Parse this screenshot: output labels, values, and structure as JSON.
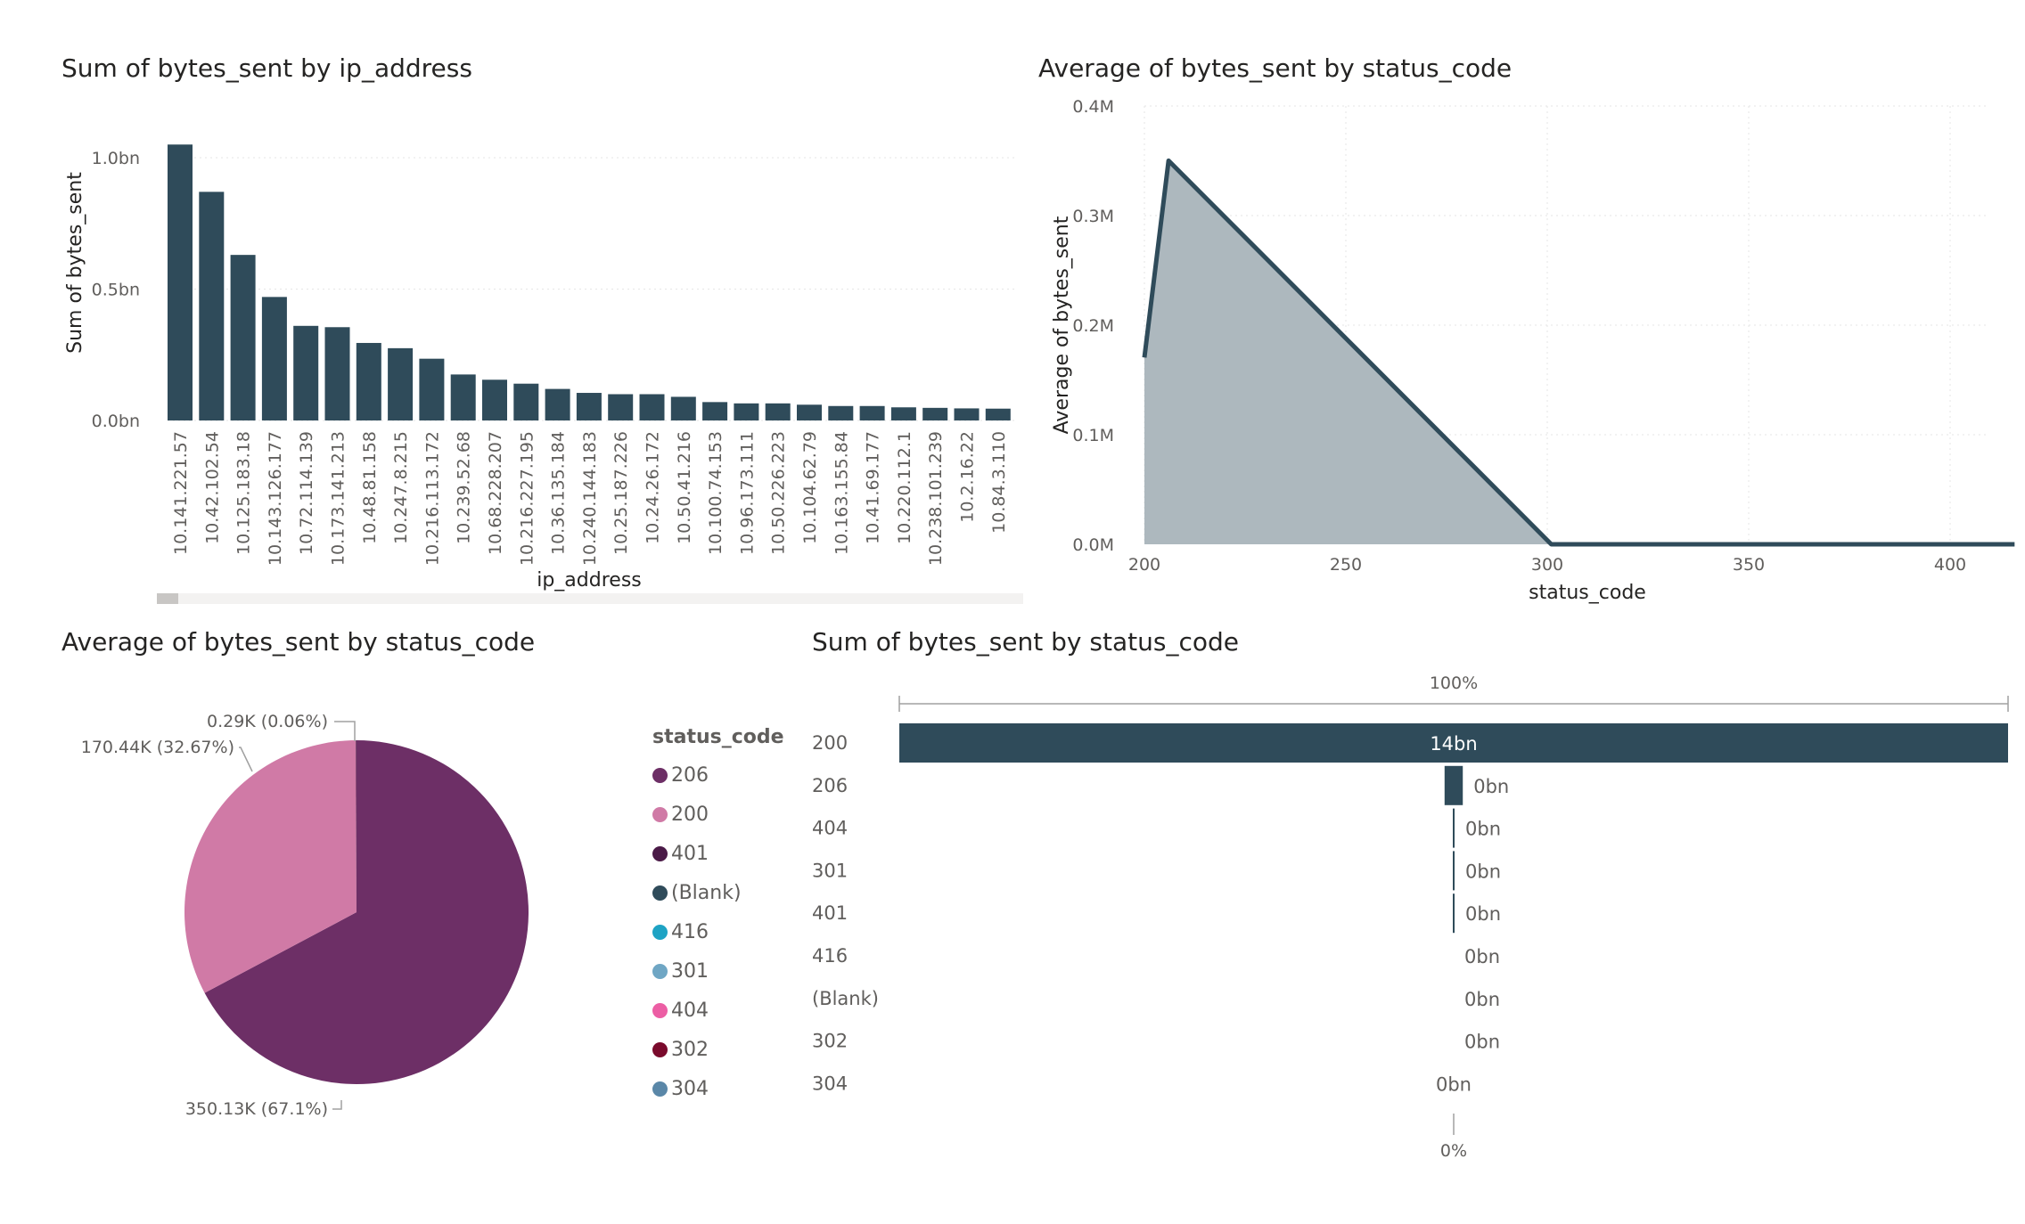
{
  "charts": {
    "bar_ip": {
      "title": "Sum of bytes_sent by ip_address"
    },
    "area_status": {
      "title": "Average of bytes_sent by status_code"
    },
    "pie_status": {
      "title": "Average of bytes_sent by status_code",
      "legend_title": "status_code",
      "legend_items": [
        {
          "label": "206",
          "color": "#6d2f66"
        },
        {
          "label": "200",
          "color": "#d07aa6"
        },
        {
          "label": "401",
          "color": "#4a1a47"
        },
        {
          "label": "(Blank)",
          "color": "#2f4b5a"
        },
        {
          "label": "416",
          "color": "#1ea3c4"
        },
        {
          "label": "301",
          "color": "#6fa6c4"
        },
        {
          "label": "404",
          "color": "#ec5ea4"
        },
        {
          "label": "302",
          "color": "#7a0a2c"
        },
        {
          "label": "304",
          "color": "#5a87a8"
        }
      ]
    },
    "funnel_status": {
      "title": "Sum of bytes_sent by status_code",
      "top_label": "100%",
      "bottom_label": "0%"
    }
  },
  "chart_data": [
    {
      "type": "bar",
      "title": "Sum of bytes_sent by ip_address",
      "xlabel": "ip_address",
      "ylabel": "Sum of bytes_sent",
      "ylim": [
        0,
        1.05
      ],
      "yticks": [
        "0.0bn",
        "0.5bn",
        "1.0bn"
      ],
      "ytick_values": [
        0,
        0.5,
        1.0
      ],
      "grid": true,
      "categories": [
        "10.141.221.57",
        "10.42.102.54",
        "10.125.183.18",
        "10.143.126.177",
        "10.72.114.139",
        "10.173.141.213",
        "10.48.81.158",
        "10.247.8.215",
        "10.216.113.172",
        "10.239.52.68",
        "10.68.228.207",
        "10.216.227.195",
        "10.36.135.184",
        "10.240.144.183",
        "10.25.187.226",
        "10.24.26.172",
        "10.50.41.216",
        "10.100.74.153",
        "10.96.173.111",
        "10.50.226.223",
        "10.104.62.79",
        "10.163.155.84",
        "10.41.69.177",
        "10.220.112.1",
        "10.238.101.239",
        "10.2.16.22",
        "10.84.3.110"
      ],
      "values": [
        1.05,
        0.87,
        0.63,
        0.47,
        0.36,
        0.355,
        0.295,
        0.275,
        0.235,
        0.175,
        0.155,
        0.14,
        0.12,
        0.105,
        0.1,
        0.1,
        0.09,
        0.07,
        0.065,
        0.065,
        0.06,
        0.055,
        0.055,
        0.05,
        0.048,
        0.046,
        0.045
      ],
      "unit": "bn"
    },
    {
      "type": "area",
      "title": "Average of bytes_sent by status_code",
      "xlabel": "status_code",
      "ylabel": "Average of bytes_sent",
      "xlim": [
        200,
        416
      ],
      "ylim": [
        0,
        0.4
      ],
      "xticks": [
        200,
        250,
        300,
        350,
        400
      ],
      "yticks": [
        "0.0M",
        "0.1M",
        "0.2M",
        "0.3M",
        "0.4M"
      ],
      "ytick_values": [
        0,
        0.1,
        0.2,
        0.3,
        0.4
      ],
      "grid": true,
      "points": [
        [
          200,
          0.17044
        ],
        [
          206,
          0.35013
        ],
        [
          301,
          0.0
        ],
        [
          302,
          0.0
        ],
        [
          304,
          0.0
        ],
        [
          401,
          0.0
        ],
        [
          404,
          0.0
        ],
        [
          416,
          0.0
        ]
      ],
      "unit": "M"
    },
    {
      "type": "pie",
      "title": "Average of bytes_sent by status_code",
      "slices": [
        {
          "label": "206",
          "value": 350.13,
          "display": "350.13K (67.1%)"
        },
        {
          "label": "200",
          "value": 170.44,
          "display": "170.44K (32.67%)"
        },
        {
          "label": "401",
          "value": 0.29,
          "display": "0.29K (0.06%)"
        }
      ],
      "legend_position": "right"
    },
    {
      "type": "bar",
      "title": "Sum of bytes_sent by status_code",
      "orientation": "funnel",
      "categories": [
        "200",
        "206",
        "404",
        "301",
        "401",
        "416",
        "(Blank)",
        "302",
        "304"
      ],
      "values": [
        14,
        0.23,
        0.002,
        0.001,
        0.001,
        0,
        0,
        0,
        0
      ],
      "value_labels": [
        "14bn",
        "0bn",
        "0bn",
        "0bn",
        "0bn",
        "0bn",
        "0bn",
        "0bn",
        "0bn"
      ]
    }
  ]
}
